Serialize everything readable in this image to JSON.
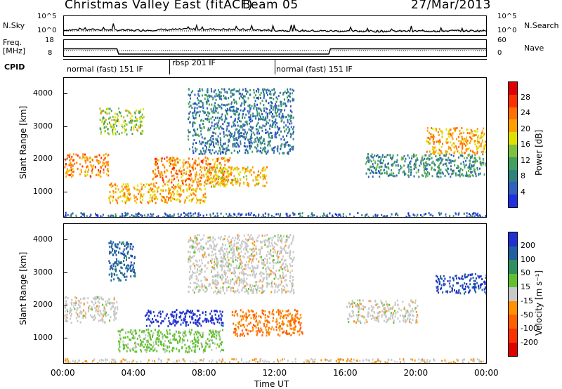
{
  "header": {
    "title_left": "Christmas Valley East (fitACF)",
    "beam": "Beam 05",
    "date": "27/Mar/2013"
  },
  "noise_panel": {
    "left_label": "N.Sky",
    "right_label": "N.Search",
    "left_ticks": [
      "10^5",
      "10^0"
    ],
    "right_ticks": [
      "10^5",
      "10^0"
    ]
  },
  "freq_panel": {
    "left_label_1": "Freq.",
    "left_label_2": "[MHz]",
    "right_label": "Nave",
    "left_ticks": [
      "18",
      "8"
    ],
    "right_ticks": [
      "60",
      "0"
    ]
  },
  "cpid": {
    "label": "CPID",
    "segments": [
      {
        "label": "normal (fast) 151 IF",
        "start_hour": 0,
        "end_hour": 6
      },
      {
        "label": "rbsp 201 IF",
        "start_hour": 6,
        "end_hour": 12
      },
      {
        "label": "normal (fast) 151 IF",
        "start_hour": 12,
        "end_hour": 24
      }
    ]
  },
  "power_colorbar": {
    "label": "Power [dB]",
    "ticks": [
      "28",
      "24",
      "20",
      "16",
      "12",
      "8",
      "4"
    ],
    "colors": [
      "#e00000",
      "#ff3000",
      "#ff7000",
      "#ffa000",
      "#e0e000",
      "#80c040",
      "#40a060",
      "#308080",
      "#3060c0",
      "#2030e0"
    ]
  },
  "velocity_colorbar": {
    "label": "Velocity [m s⁻¹]",
    "ticks": [
      "200",
      "100",
      "50",
      "15",
      "-15",
      "-50",
      "-100",
      "-200"
    ],
    "colors": [
      "#2030d0",
      "#2060a0",
      "#309060",
      "#60c030",
      "#c8c8c8",
      "#ff9000",
      "#ff6000",
      "#ff3000",
      "#e00000"
    ]
  },
  "y_axis": {
    "label": "Slant Range [km]",
    "ticks": [
      "4000",
      "3000",
      "2000",
      "1000"
    ]
  },
  "x_axis": {
    "label": "Time UT",
    "ticks": [
      "00:00",
      "04:00",
      "08:00",
      "12:00",
      "16:00",
      "20:00",
      "00:00"
    ]
  },
  "chart_data": [
    {
      "type": "line",
      "title": "N.Sky / N.Search",
      "x": [
        0,
        2,
        4,
        6,
        8,
        10,
        12,
        14,
        16,
        18,
        20,
        22,
        24
      ],
      "series": [
        {
          "name": "N.Sky",
          "values": [
            1.6,
            1.7,
            1.5,
            1.7,
            1.8,
            1.7,
            1.5,
            1.4,
            1.3,
            1.3,
            1.3,
            1.4,
            1.4
          ]
        }
      ],
      "ylim": [
        0,
        5
      ]
    },
    {
      "type": "line",
      "title": "Freq / Nave",
      "x": [
        0,
        3,
        3.1,
        15,
        15.1,
        24
      ],
      "series": [
        {
          "name": "Freq.",
          "values": [
            13,
            13,
            10,
            10,
            13,
            13
          ]
        },
        {
          "name": "Nave",
          "values": [
            18,
            18,
            18,
            18,
            18,
            18
          ]
        }
      ],
      "ylim": [
        8,
        18
      ]
    },
    {
      "type": "heatmap",
      "title": "Power [dB]",
      "xlabel": "Time UT",
      "ylabel": "Slant Range [km]",
      "xlim": [
        0,
        24
      ],
      "ylim": [
        200,
        4500
      ],
      "zlim": [
        0,
        30
      ],
      "features": [
        {
          "t_start": 0.0,
          "t_end": 2.5,
          "range_start": 1500,
          "range_end": 2200,
          "power": 22
        },
        {
          "t_start": 2.0,
          "t_end": 4.5,
          "range_start": 2800,
          "range_end": 3600,
          "power": 14
        },
        {
          "t_start": 2.5,
          "t_end": 8.0,
          "range_start": 700,
          "range_end": 1300,
          "power": 20
        },
        {
          "t_start": 5.0,
          "t_end": 9.5,
          "range_start": 1300,
          "range_end": 2100,
          "power": 22
        },
        {
          "t_start": 8.0,
          "t_end": 11.5,
          "range_start": 1200,
          "range_end": 1800,
          "power": 18
        },
        {
          "t_start": 7.0,
          "t_end": 13.0,
          "range_start": 2200,
          "range_end": 4200,
          "power": 6
        },
        {
          "t_start": 17.0,
          "t_end": 24.0,
          "range_start": 1500,
          "range_end": 2200,
          "power": 8
        },
        {
          "t_start": 20.5,
          "t_end": 24.0,
          "range_start": 2200,
          "range_end": 3000,
          "power": 20
        },
        {
          "t_start": 0.0,
          "t_end": 24.0,
          "range_start": 200,
          "range_end": 400,
          "power": 4
        }
      ]
    },
    {
      "type": "heatmap",
      "title": "Velocity [m s⁻¹]",
      "xlabel": "Time UT",
      "ylabel": "Slant Range [km]",
      "xlim": [
        0,
        24
      ],
      "ylim": [
        200,
        4500
      ],
      "zlim": [
        -200,
        200
      ],
      "features": [
        {
          "t_start": 0.0,
          "t_end": 3.0,
          "range_start": 1500,
          "range_end": 2300,
          "velocity": 0
        },
        {
          "t_start": 2.5,
          "t_end": 4.0,
          "range_start": 2800,
          "range_end": 4000,
          "velocity": 150
        },
        {
          "t_start": 4.5,
          "t_end": 9.0,
          "range_start": 1400,
          "range_end": 1900,
          "velocity": 200
        },
        {
          "t_start": 3.0,
          "t_end": 9.0,
          "range_start": 600,
          "range_end": 1300,
          "velocity": 40
        },
        {
          "t_start": 9.5,
          "t_end": 13.5,
          "range_start": 1100,
          "range_end": 1900,
          "velocity": -80
        },
        {
          "t_start": 7.0,
          "t_end": 13.0,
          "range_start": 2400,
          "range_end": 4200,
          "velocity": 0
        },
        {
          "t_start": 16.0,
          "t_end": 20.0,
          "range_start": 1500,
          "range_end": 2200,
          "velocity": 0
        },
        {
          "t_start": 21.0,
          "t_end": 24.0,
          "range_start": 2400,
          "range_end": 3000,
          "velocity": 180
        },
        {
          "t_start": 0.0,
          "t_end": 24.0,
          "range_start": 200,
          "range_end": 400,
          "velocity": -20
        }
      ]
    }
  ]
}
